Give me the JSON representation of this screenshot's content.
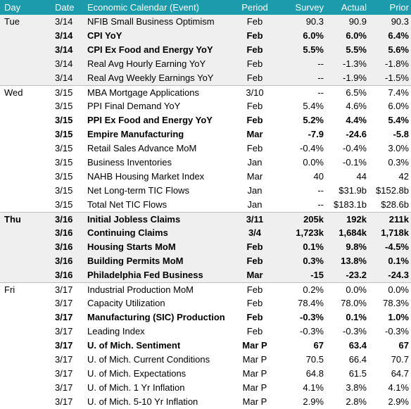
{
  "header": {
    "day": "Day",
    "date": "Date",
    "event": "Economic Calendar (Event)",
    "period": "Period",
    "survey": "Survey",
    "actual": "Actual",
    "prior": "Prior"
  },
  "groups": [
    {
      "day": "Tue",
      "shaded": true,
      "rows": [
        {
          "date": "3/14",
          "event": "NFIB Small Business Optimism",
          "period": "Feb",
          "survey": "90.3",
          "actual": "90.9",
          "prior": "90.3",
          "bold": false
        },
        {
          "date": "3/14",
          "event": "CPI YoY",
          "period": "Feb",
          "survey": "6.0%",
          "actual": "6.0%",
          "prior": "6.4%",
          "bold": true
        },
        {
          "date": "3/14",
          "event": "CPI Ex Food and Energy YoY",
          "period": "Feb",
          "survey": "5.5%",
          "actual": "5.5%",
          "prior": "5.6%",
          "bold": true
        },
        {
          "date": "3/14",
          "event": "Real Avg Hourly Earning YoY",
          "period": "Feb",
          "survey": "--",
          "actual": "-1.3%",
          "prior": "-1.8%",
          "bold": false
        },
        {
          "date": "3/14",
          "event": "Real Avg Weekly Earnings YoY",
          "period": "Feb",
          "survey": "--",
          "actual": "-1.9%",
          "prior": "-1.5%",
          "bold": false
        }
      ]
    },
    {
      "day": "Wed",
      "shaded": false,
      "rows": [
        {
          "date": "3/15",
          "event": "MBA Mortgage Applications",
          "period": "3/10",
          "survey": "--",
          "actual": "6.5%",
          "prior": "7.4%",
          "bold": false
        },
        {
          "date": "3/15",
          "event": "PPI Final Demand YoY",
          "period": "Feb",
          "survey": "5.4%",
          "actual": "4.6%",
          "prior": "6.0%",
          "bold": false
        },
        {
          "date": "3/15",
          "event": "PPI Ex Food and Energy YoY",
          "period": "Feb",
          "survey": "5.2%",
          "actual": "4.4%",
          "prior": "5.4%",
          "bold": true
        },
        {
          "date": "3/15",
          "event": "Empire Manufacturing",
          "period": "Mar",
          "survey": "-7.9",
          "actual": "-24.6",
          "prior": "-5.8",
          "bold": true
        },
        {
          "date": "3/15",
          "event": "Retail Sales Advance MoM",
          "period": "Feb",
          "survey": "-0.4%",
          "actual": "-0.4%",
          "prior": "3.0%",
          "bold": false
        },
        {
          "date": "3/15",
          "event": "Business Inventories",
          "period": "Jan",
          "survey": "0.0%",
          "actual": "-0.1%",
          "prior": "0.3%",
          "bold": false
        },
        {
          "date": "3/15",
          "event": "NAHB Housing Market Index",
          "period": "Mar",
          "survey": "40",
          "actual": "44",
          "prior": "42",
          "bold": false
        },
        {
          "date": "3/15",
          "event": "Net Long-term TIC Flows",
          "period": "Jan",
          "survey": "--",
          "actual": "$31.9b",
          "prior": "$152.8b",
          "bold": false
        },
        {
          "date": "3/15",
          "event": "Total Net TIC Flows",
          "period": "Jan",
          "survey": "--",
          "actual": "$183.1b",
          "prior": "$28.6b",
          "bold": false
        }
      ]
    },
    {
      "day": "Thu",
      "shaded": true,
      "rows": [
        {
          "date": "3/16",
          "event": "Initial Jobless Claims",
          "period": "3/11",
          "survey": "205k",
          "actual": "192k",
          "prior": "211k",
          "bold": true
        },
        {
          "date": "3/16",
          "event": "Continuing Claims",
          "period": "3/4",
          "survey": "1,723k",
          "actual": "1,684k",
          "prior": "1,718k",
          "bold": true
        },
        {
          "date": "3/16",
          "event": "Housing Starts MoM",
          "period": "Feb",
          "survey": "0.1%",
          "actual": "9.8%",
          "prior": "-4.5%",
          "bold": true
        },
        {
          "date": "3/16",
          "event": "Building Permits MoM",
          "period": "Feb",
          "survey": "0.3%",
          "actual": "13.8%",
          "prior": "0.1%",
          "bold": true
        },
        {
          "date": "3/16",
          "event": "Philadelphia Fed Business",
          "period": "Mar",
          "survey": "-15",
          "actual": "-23.2",
          "prior": "-24.3",
          "bold": true
        }
      ]
    },
    {
      "day": "Fri",
      "shaded": false,
      "rows": [
        {
          "date": "3/17",
          "event": "Industrial Production MoM",
          "period": "Feb",
          "survey": "0.2%",
          "actual": "0.0%",
          "prior": "0.0%",
          "bold": false
        },
        {
          "date": "3/17",
          "event": "Capacity Utilization",
          "period": "Feb",
          "survey": "78.4%",
          "actual": "78.0%",
          "prior": "78.3%",
          "bold": false
        },
        {
          "date": "3/17",
          "event": "Manufacturing (SIC) Production",
          "period": "Feb",
          "survey": "-0.3%",
          "actual": "0.1%",
          "prior": "1.0%",
          "bold": true
        },
        {
          "date": "3/17",
          "event": "Leading Index",
          "period": "Feb",
          "survey": "-0.3%",
          "actual": "-0.3%",
          "prior": "-0.3%",
          "bold": false
        },
        {
          "date": "3/17",
          "event": "U. of Mich. Sentiment",
          "period": "Mar P",
          "survey": "67",
          "actual": "63.4",
          "prior": "67",
          "bold": true
        },
        {
          "date": "3/17",
          "event": "U. of Mich. Current Conditions",
          "period": "Mar P",
          "survey": "70.5",
          "actual": "66.4",
          "prior": "70.7",
          "bold": false
        },
        {
          "date": "3/17",
          "event": "U. of Mich. Expectations",
          "period": "Mar P",
          "survey": "64.8",
          "actual": "61.5",
          "prior": "64.7",
          "bold": false
        },
        {
          "date": "3/17",
          "event": "U. of Mich. 1 Yr Inflation",
          "period": "Mar P",
          "survey": "4.1%",
          "actual": "3.8%",
          "prior": "4.1%",
          "bold": false
        },
        {
          "date": "3/17",
          "event": "U. of Mich. 5-10 Yr Inflation",
          "period": "Mar P",
          "survey": "2.9%",
          "actual": "2.8%",
          "prior": "2.9%",
          "bold": false
        }
      ]
    }
  ]
}
